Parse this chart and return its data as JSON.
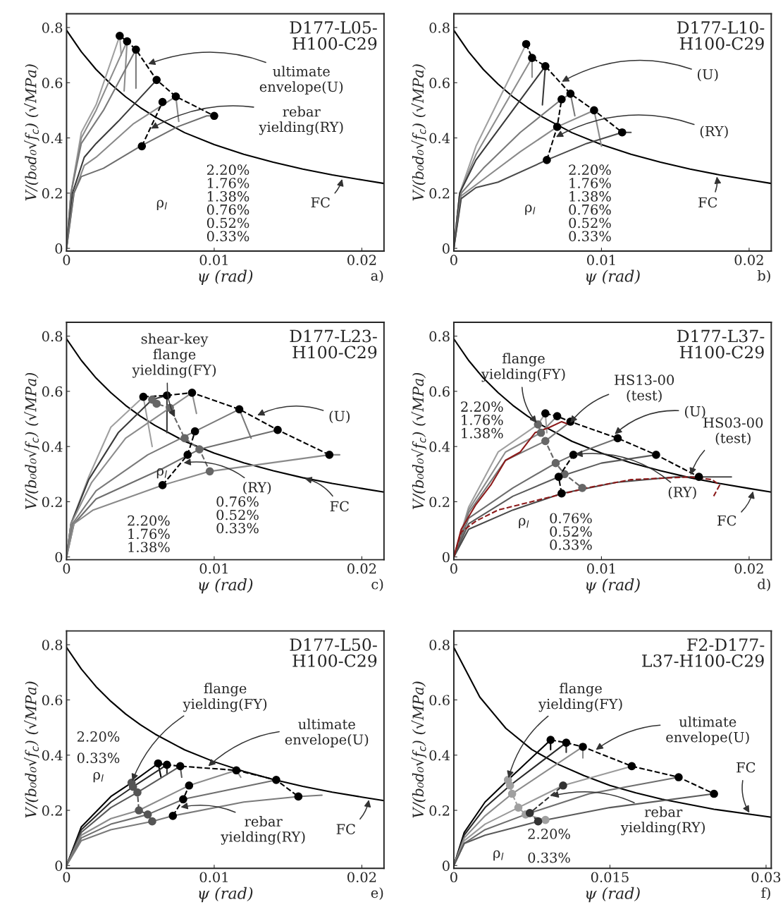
{
  "chart_data": [
    {
      "type": "line",
      "xlabel": "ψ (rad)",
      "ylabel": "V/(b₀d₀√f$_{c}$) (√MPa)",
      "xlim": [
        0,
        0.0215
      ],
      "ylim": [
        -0.01,
        0.85
      ],
      "xticks": [
        0,
        0.01,
        0.02
      ],
      "yticks": [
        0,
        0.2,
        0.4,
        0.6,
        0.8
      ],
      "annotations": [
        "D177-L05-\nH100-C29",
        {
          "text": "ultimate\nenvelope(U)",
          "x": 0.0054,
          "y": 0.665
        },
        {
          "text": "rebar\nyielding(RY)",
          "x": 0.0056,
          "y": 0.43
        },
        "2.20%\n1.76%\n1.38%\n0.76%\n0.52%\n0.33%",
        "ρ$_{l}$",
        {
          "text": "FC",
          "x": 0.0187,
          "y": 0.258
        },
        "a)"
      ],
      "series": [
        {
          "color": "#000000",
          "x": [
            0,
            0.001,
            0.002,
            0.003,
            0.004,
            0.005,
            0.006,
            0.008,
            0.01,
            0.012,
            0.014,
            0.016,
            0.018,
            0.02,
            0.0215
          ],
          "values": [
            0.79,
            0.712,
            0.648,
            0.595,
            0.549,
            0.51,
            0.476,
            0.419,
            0.376,
            0.341,
            0.312,
            0.287,
            0.266,
            0.248,
            0.235
          ]
        },
        {
          "color": "#a0a0a0",
          "x": [
            0,
            0.0003,
            0.001,
            0.002,
            0.0036,
            0.0037
          ],
          "values": [
            0,
            0.2,
            0.42,
            0.52,
            0.77,
            0.7
          ]
        },
        {
          "color": "#8c8c8c",
          "x": [
            0,
            0.0003,
            0.001,
            0.002,
            0.0041,
            0.0039
          ],
          "values": [
            0,
            0.2,
            0.4,
            0.5,
            0.75,
            0.57
          ]
        },
        {
          "color": "#7a7a7a",
          "x": [
            0,
            0.0003,
            0.001,
            0.0025,
            0.0047,
            0.0047
          ],
          "values": [
            0,
            0.2,
            0.38,
            0.5,
            0.72,
            0.58
          ]
        },
        {
          "color": "#3a3a3a",
          "x": [
            0,
            0.0004,
            0.0012,
            0.002,
            0.0035,
            0.0061
          ],
          "values": [
            0,
            0.2,
            0.33,
            0.38,
            0.46,
            0.61
          ]
        },
        {
          "color": "#8a8a8a",
          "x": [
            0,
            0.0005,
            0.0012,
            0.002,
            0.0045,
            0.0074,
            0.0076
          ],
          "values": [
            0,
            0.2,
            0.3,
            0.33,
            0.45,
            0.55,
            0.46
          ]
        },
        {
          "color": "#6e6e6e",
          "x": [
            0,
            0.0005,
            0.001,
            0.0025,
            0.005,
            0.0075,
            0.0095,
            0.01
          ],
          "values": [
            0,
            0.2,
            0.26,
            0.29,
            0.37,
            0.44,
            0.48,
            0.48
          ]
        },
        {
          "color": "#000000",
          "marker": "circle",
          "line_style": "dashed",
          "x": [
            0.0036,
            0.0041,
            0.0047,
            0.0061,
            0.0074,
            0.01
          ],
          "values": [
            0.77,
            0.75,
            0.72,
            0.61,
            0.55,
            0.48
          ]
        },
        {
          "color": "#000000",
          "marker": "circle",
          "line_style": "dashed",
          "x": [
            0.0051,
            0.0065
          ],
          "values": [
            0.37,
            0.53
          ]
        }
      ]
    },
    {
      "type": "line",
      "xlabel": "ψ (rad)",
      "ylabel": "V/(b₀d₀√f$_{c}$) (√MPa)",
      "xlim": [
        0,
        0.0215
      ],
      "ylim": [
        -0.01,
        0.85
      ],
      "xticks": [
        0,
        0.01,
        0.02
      ],
      "yticks": [
        0,
        0.2,
        0.4,
        0.6,
        0.8
      ],
      "annotations": [
        "D177-L10-\nH100-C29",
        {
          "text": "(U)",
          "x": 0.0072,
          "y": 0.6
        },
        {
          "text": "(RY)",
          "x": 0.0068,
          "y": 0.4
        },
        "2.20%\n1.76%\n1.38%\n0.76%\n0.52%\n0.33%",
        "ρ$_{l}$",
        {
          "text": "FC",
          "x": 0.0178,
          "y": 0.267
        },
        "b)"
      ],
      "series": [
        {
          "color": "#000000",
          "x": [
            0,
            0.001,
            0.002,
            0.003,
            0.004,
            0.005,
            0.006,
            0.008,
            0.01,
            0.012,
            0.014,
            0.016,
            0.018,
            0.02,
            0.0215
          ],
          "values": [
            0.79,
            0.712,
            0.648,
            0.595,
            0.549,
            0.51,
            0.476,
            0.419,
            0.376,
            0.341,
            0.312,
            0.287,
            0.266,
            0.248,
            0.235
          ]
        },
        {
          "color": "#a0a0a0",
          "x": [
            0,
            0.0004,
            0.0015,
            0.0049
          ],
          "values": [
            0,
            0.2,
            0.37,
            0.74
          ]
        },
        {
          "color": "#8c8c8c",
          "x": [
            0,
            0.0004,
            0.0015,
            0.0053,
            0.0053
          ],
          "values": [
            0,
            0.2,
            0.34,
            0.69,
            0.62
          ]
        },
        {
          "color": "#3a3a3a",
          "x": [
            0,
            0.0004,
            0.0015,
            0.0062,
            0.006
          ],
          "values": [
            0,
            0.2,
            0.32,
            0.66,
            0.52
          ]
        },
        {
          "color": "#7a7a7a",
          "x": [
            0,
            0.0005,
            0.002,
            0.0045,
            0.0073,
            0.0079,
            0.0082
          ],
          "values": [
            0,
            0.2,
            0.29,
            0.42,
            0.54,
            0.56,
            0.48
          ]
        },
        {
          "color": "#8a8a8a",
          "x": [
            0,
            0.0005,
            0.002,
            0.0045,
            0.007,
            0.0095,
            0.01
          ],
          "values": [
            0,
            0.19,
            0.25,
            0.35,
            0.44,
            0.5,
            0.37
          ]
        },
        {
          "color": "#4a4a4a",
          "x": [
            0,
            0.0005,
            0.0015,
            0.003,
            0.0063,
            0.009,
            0.0114,
            0.012
          ],
          "values": [
            0,
            0.18,
            0.22,
            0.24,
            0.32,
            0.38,
            0.42,
            0.42
          ]
        },
        {
          "color": "#000000",
          "marker": "circle",
          "line_style": "dashed",
          "x": [
            0.0049,
            0.0053,
            0.0062,
            0.0079,
            0.0095,
            0.0114
          ],
          "values": [
            0.74,
            0.69,
            0.66,
            0.56,
            0.5,
            0.42
          ]
        },
        {
          "color": "#000000",
          "marker": "circle",
          "line_style": "dashed",
          "x": [
            0.0063,
            0.007,
            0.0073
          ],
          "values": [
            0.32,
            0.44,
            0.54
          ]
        }
      ]
    },
    {
      "type": "line",
      "xlabel": "ψ (rad)",
      "ylabel": "V/(b₀d₀√f$_{c}$) (√MPa)",
      "xlim": [
        0,
        0.0215
      ],
      "ylim": [
        -0.01,
        0.85
      ],
      "xticks": [
        0,
        0.01,
        0.02
      ],
      "yticks": [
        0,
        0.2,
        0.4,
        0.6,
        0.8
      ],
      "annotations": [
        "D177-L23-\nH100-C29",
        {
          "text": "shear-key\nflange\nyielding(FY)",
          "x": 0.0074,
          "y": 0.5
        },
        {
          "text": "(U)",
          "x": 0.0128,
          "y": 0.51
        },
        {
          "text": "(RY)",
          "x": 0.0078,
          "y": 0.34
        },
        "2.20%\n1.76%\n1.38%",
        "0.76%\n0.52%\n0.33%",
        "ρ$_{l}$",
        {
          "text": "FC",
          "x": 0.016,
          "y": 0.286
        },
        "c)"
      ],
      "series": [
        {
          "color": "#000000",
          "x": [
            0,
            0.001,
            0.002,
            0.003,
            0.004,
            0.005,
            0.006,
            0.008,
            0.01,
            0.012,
            0.014,
            0.016,
            0.018,
            0.02,
            0.0215
          ],
          "values": [
            0.79,
            0.712,
            0.648,
            0.595,
            0.549,
            0.51,
            0.476,
            0.419,
            0.376,
            0.341,
            0.312,
            0.287,
            0.266,
            0.248,
            0.235
          ]
        },
        {
          "color": "#a0a0a0",
          "x": [
            0,
            0.0003,
            0.0015,
            0.003,
            0.0052,
            0.0058
          ],
          "values": [
            0,
            0.12,
            0.29,
            0.47,
            0.58,
            0.4
          ]
        },
        {
          "color": "#3a3a3a",
          "x": [
            0,
            0.0003,
            0.0015,
            0.0035,
            0.0058,
            0.0068,
            0.0068
          ],
          "values": [
            0,
            0.12,
            0.28,
            0.45,
            0.57,
            0.585,
            0.45
          ]
        },
        {
          "color": "#8c8c8c",
          "x": [
            0,
            0.0003,
            0.0017,
            0.004,
            0.007,
            0.0085,
            0.0088
          ],
          "values": [
            0,
            0.12,
            0.27,
            0.43,
            0.54,
            0.595,
            0.52
          ]
        },
        {
          "color": "#7a7a7a",
          "x": [
            0,
            0.0004,
            0.002,
            0.0055,
            0.0087,
            0.0117,
            0.0125
          ],
          "values": [
            0,
            0.12,
            0.24,
            0.37,
            0.455,
            0.535,
            0.43
          ]
        },
        {
          "color": "#6e6e6e",
          "x": [
            0,
            0.0005,
            0.002,
            0.0065,
            0.009,
            0.0143
          ],
          "values": [
            0,
            0.12,
            0.21,
            0.32,
            0.39,
            0.46
          ]
        },
        {
          "color": "#8a8a8a",
          "x": [
            0,
            0.0005,
            0.0018,
            0.0065,
            0.0097,
            0.0178,
            0.0185
          ],
          "values": [
            0,
            0.12,
            0.17,
            0.26,
            0.31,
            0.37,
            0.37
          ]
        },
        {
          "color": "#000000",
          "marker": "circle",
          "line_style": "dashed",
          "x": [
            0.0052,
            0.0068,
            0.0085,
            0.0117,
            0.0143,
            0.0178
          ],
          "values": [
            0.58,
            0.585,
            0.595,
            0.535,
            0.46,
            0.37
          ]
        },
        {
          "color": "#666666",
          "marker": "circle",
          "line_style": "dashed",
          "x": [
            0.0058,
            0.0061,
            0.007,
            0.008,
            0.009,
            0.0097
          ],
          "values": [
            0.57,
            0.555,
            0.54,
            0.43,
            0.39,
            0.31
          ]
        },
        {
          "color": "#000000",
          "marker": "circle",
          "line_style": "dashed",
          "x": [
            0.0065,
            0.0082,
            0.0087
          ],
          "values": [
            0.26,
            0.37,
            0.455
          ]
        }
      ]
    },
    {
      "type": "line",
      "xlabel": "ψ (rad)",
      "ylabel": "V/(b₀d₀√f$_{c}$) (√MPa)",
      "xlim": [
        0,
        0.0215
      ],
      "ylim": [
        -0.01,
        0.85
      ],
      "xticks": [
        0,
        0.01,
        0.02
      ],
      "yticks": [
        0,
        0.2,
        0.4,
        0.6,
        0.8
      ],
      "annotations": [
        "D177-L37-\nH100-C29",
        {
          "text": "flange\nyielding(FY)",
          "x": 0.0057,
          "y": 0.48
        },
        {
          "text": "HS13-00\n(test)",
          "x": 0.0078,
          "y": 0.48
        },
        {
          "text": "(U)",
          "x": 0.0108,
          "y": 0.44
        },
        {
          "text": "HS03-00\n(test)",
          "x": 0.016,
          "y": 0.29
        },
        {
          "text": "(RY)",
          "x": 0.0081,
          "y": 0.37
        },
        "2.20%\n1.76%\n1.38%",
        "0.76%\n0.52%\n0.33%",
        "ρ$_{l}$",
        {
          "text": "FC",
          "x": 0.0203,
          "y": 0.245
        },
        "d)"
      ],
      "series": [
        {
          "color": "#000000",
          "x": [
            0,
            0.001,
            0.002,
            0.003,
            0.004,
            0.005,
            0.006,
            0.008,
            0.01,
            0.012,
            0.014,
            0.016,
            0.018,
            0.02,
            0.0215
          ],
          "values": [
            0.79,
            0.712,
            0.648,
            0.595,
            0.549,
            0.51,
            0.476,
            0.419,
            0.376,
            0.341,
            0.312,
            0.287,
            0.266,
            0.248,
            0.235
          ]
        },
        {
          "color": "#a0a0a0",
          "x": [
            0,
            0.001,
            0.003,
            0.0057,
            0.0062,
            0.0063
          ],
          "values": [
            0,
            0.18,
            0.38,
            0.48,
            0.52,
            0.45
          ]
        },
        {
          "color": "#8c8c8c",
          "x": [
            0,
            0.001,
            0.0035,
            0.0059,
            0.007
          ],
          "values": [
            0,
            0.17,
            0.38,
            0.45,
            0.51
          ]
        },
        {
          "color": "#7a7a7a",
          "x": [
            0,
            0.001,
            0.0035,
            0.0062,
            0.0079
          ],
          "values": [
            0,
            0.16,
            0.35,
            0.42,
            0.49
          ]
        },
        {
          "color": "#6e6e6e",
          "x": [
            0,
            0.001,
            0.004,
            0.0069,
            0.0081,
            0.0111
          ],
          "values": [
            0,
            0.14,
            0.25,
            0.34,
            0.37,
            0.43
          ]
        },
        {
          "color": "#5a5a5a",
          "x": [
            0,
            0.001,
            0.004,
            0.0071,
            0.01,
            0.0137
          ],
          "values": [
            0,
            0.12,
            0.22,
            0.29,
            0.34,
            0.37
          ]
        },
        {
          "color": "#4a4a4a",
          "x": [
            0,
            0.001,
            0.004,
            0.0073,
            0.011,
            0.015,
            0.0166,
            0.0188
          ],
          "values": [
            0,
            0.1,
            0.17,
            0.23,
            0.27,
            0.29,
            0.29,
            0.29
          ]
        },
        {
          "color": "#8b1a1a",
          "x": [
            0,
            0.0005,
            0.0015,
            0.0025,
            0.0035,
            0.0045,
            0.0055,
            0.0065,
            0.0073,
            0.0078
          ],
          "values": [
            0,
            0.1,
            0.19,
            0.26,
            0.35,
            0.38,
            0.45,
            0.47,
            0.49,
            0.48
          ]
        },
        {
          "color": "#8b1a1a",
          "line_style": "dashed",
          "x": [
            0,
            0.0005,
            0.0015,
            0.003,
            0.006,
            0.009,
            0.012,
            0.016,
            0.0175,
            0.018,
            0.0176
          ],
          "values": [
            0,
            0.09,
            0.13,
            0.17,
            0.21,
            0.25,
            0.28,
            0.29,
            0.28,
            0.26,
            0.22
          ]
        },
        {
          "color": "#000000",
          "marker": "circle",
          "line_style": "dashed",
          "x": [
            0.0062,
            0.007,
            0.0079,
            0.0111,
            0.0137,
            0.0166
          ],
          "values": [
            0.52,
            0.51,
            0.49,
            0.43,
            0.37,
            0.29
          ]
        },
        {
          "color": "#666666",
          "marker": "circle",
          "line_style": "dashed",
          "x": [
            0.0057,
            0.0059,
            0.0062,
            0.0069,
            0.0075,
            0.0087
          ],
          "values": [
            0.48,
            0.45,
            0.42,
            0.34,
            0.3,
            0.25
          ]
        },
        {
          "color": "#000000",
          "marker": "circle",
          "line_style": "dashed",
          "x": [
            0.0073,
            0.0071,
            0.0081
          ],
          "values": [
            0.23,
            0.29,
            0.37
          ]
        }
      ]
    },
    {
      "type": "line",
      "xlabel": "ψ (rad)",
      "ylabel": "V/(b₀d₀√f$_{c}$) (√MPa)",
      "xlim": [
        0,
        0.0215
      ],
      "ylim": [
        -0.01,
        0.85
      ],
      "xticks": [
        0,
        0.01,
        0.02
      ],
      "yticks": [
        0,
        0.2,
        0.4,
        0.6,
        0.8
      ],
      "annotations": [
        "D177-L50-\nH100-C29",
        {
          "text": "flange\nyielding(FY)",
          "x": 0.0044,
          "y": 0.3
        },
        {
          "text": "ultimate\nenvelope(U)",
          "x": 0.0095,
          "y": 0.355
        },
        {
          "text": "rebar\nyielding(RY)",
          "x": 0.0076,
          "y": 0.21
        },
        "2.20%",
        "0.33%",
        "ρ$_{l}$",
        {
          "text": "FC",
          "x": 0.0205,
          "y": 0.245
        },
        "e)"
      ],
      "series": [
        {
          "color": "#000000",
          "x": [
            0,
            0.001,
            0.002,
            0.003,
            0.004,
            0.005,
            0.006,
            0.008,
            0.01,
            0.012,
            0.014,
            0.016,
            0.018,
            0.02,
            0.0215
          ],
          "values": [
            0.79,
            0.712,
            0.648,
            0.595,
            0.549,
            0.51,
            0.476,
            0.419,
            0.376,
            0.341,
            0.312,
            0.287,
            0.266,
            0.248,
            0.235
          ]
        },
        {
          "color": "#000000",
          "x": [
            0,
            0.001,
            0.003,
            0.0044,
            0.0062,
            0.0064
          ],
          "values": [
            0,
            0.14,
            0.25,
            0.3,
            0.37,
            0.32
          ]
        },
        {
          "color": "#2a2a2a",
          "x": [
            0,
            0.001,
            0.003,
            0.0045,
            0.0068,
            0.0068
          ],
          "values": [
            0,
            0.13,
            0.23,
            0.285,
            0.365,
            0.33
          ]
        },
        {
          "color": "#5a5a5a",
          "x": [
            0,
            0.001,
            0.003,
            0.0048,
            0.0077,
            0.0078
          ],
          "values": [
            0,
            0.12,
            0.21,
            0.265,
            0.36,
            0.32
          ]
        },
        {
          "color": "#8c8c8c",
          "x": [
            0,
            0.001,
            0.003,
            0.0049,
            0.0083,
            0.0115,
            0.0118
          ],
          "values": [
            0,
            0.11,
            0.17,
            0.2,
            0.29,
            0.345,
            0.32
          ]
        },
        {
          "color": "#6e6e6e",
          "x": [
            0,
            0.001,
            0.003,
            0.0055,
            0.0079,
            0.0142
          ],
          "values": [
            0,
            0.1,
            0.15,
            0.185,
            0.24,
            0.31
          ]
        },
        {
          "color": "#7a7a7a",
          "x": [
            0,
            0.001,
            0.003,
            0.0058,
            0.0072,
            0.012,
            0.0157,
            0.0173
          ],
          "values": [
            0,
            0.09,
            0.13,
            0.16,
            0.18,
            0.23,
            0.25,
            0.255
          ]
        },
        {
          "color": "#000000",
          "marker": "circle",
          "line_style": "dashed",
          "x": [
            0.0062,
            0.0068,
            0.0077,
            0.0115,
            0.0142,
            0.0157
          ],
          "values": [
            0.37,
            0.365,
            0.36,
            0.345,
            0.31,
            0.25
          ]
        },
        {
          "color": "#555555",
          "marker": "circle",
          "line_style": "dashed",
          "x": [
            0.0044,
            0.0045,
            0.0048,
            0.0049,
            0.0055,
            0.0058
          ],
          "values": [
            0.3,
            0.285,
            0.265,
            0.2,
            0.185,
            0.16
          ]
        },
        {
          "color": "#000000",
          "marker": "circle",
          "line_style": "dashed",
          "x": [
            0.0072,
            0.0079,
            0.0083
          ],
          "values": [
            0.18,
            0.24,
            0.29
          ]
        }
      ]
    },
    {
      "type": "line",
      "xlabel": "ψ (rad)",
      "ylabel": "V/(b₀d₀√f$_{c}$) (√MPa)",
      "xlim": [
        0,
        0.0305
      ],
      "ylim": [
        -0.01,
        0.85
      ],
      "xticks": [
        0,
        0.015,
        0.03
      ],
      "yticks": [
        0,
        0.2,
        0.4,
        0.6,
        0.8
      ],
      "annotations": [
        "F2-D177-\nL37-H100-C29",
        {
          "text": "flange\nyielding(FY)",
          "x": 0.0052,
          "y": 0.31
        },
        {
          "text": "ultimate\nenvelope(U)",
          "x": 0.0135,
          "y": 0.415
        },
        {
          "text": "rebar\nyielding(RY)",
          "x": 0.0092,
          "y": 0.25
        },
        "2.20%",
        "0.33%",
        "ρ$_{l}$",
        {
          "text": "FC",
          "x": 0.0285,
          "y": 0.185
        },
        "f)"
      ],
      "series": [
        {
          "color": "#000000",
          "x": [
            0,
            0.0025,
            0.005,
            0.0075,
            0.01,
            0.0125,
            0.015,
            0.0175,
            0.02,
            0.025,
            0.0305
          ],
          "values": [
            0.79,
            0.61,
            0.497,
            0.42,
            0.367,
            0.326,
            0.29,
            0.263,
            0.24,
            0.204,
            0.175
          ]
        },
        {
          "color": "#000000",
          "x": [
            0,
            0.001,
            0.003,
            0.0052,
            0.0093,
            0.0093
          ],
          "values": [
            0,
            0.12,
            0.23,
            0.31,
            0.455,
            0.42
          ]
        },
        {
          "color": "#2a2a2a",
          "x": [
            0,
            0.001,
            0.003,
            0.0054,
            0.0108,
            0.0108
          ],
          "values": [
            0,
            0.11,
            0.21,
            0.29,
            0.445,
            0.41
          ]
        },
        {
          "color": "#8c8c8c",
          "x": [
            0,
            0.001,
            0.003,
            0.0056,
            0.0124,
            0.0124
          ],
          "values": [
            0,
            0.1,
            0.18,
            0.26,
            0.43,
            0.39
          ]
        },
        {
          "color": "#9a9a9a",
          "x": [
            0,
            0.001,
            0.003,
            0.0062,
            0.0105,
            0.0171
          ],
          "values": [
            0,
            0.09,
            0.15,
            0.21,
            0.29,
            0.36
          ]
        },
        {
          "color": "#6e6e6e",
          "x": [
            0,
            0.001,
            0.003,
            0.0069,
            0.013,
            0.0216
          ],
          "values": [
            0,
            0.08,
            0.13,
            0.185,
            0.26,
            0.32
          ]
        },
        {
          "color": "#5a5a5a",
          "x": [
            0,
            0.001,
            0.003,
            0.0081,
            0.015,
            0.025
          ],
          "values": [
            0,
            0.08,
            0.11,
            0.16,
            0.21,
            0.26
          ]
        },
        {
          "color": "#000000",
          "marker": "circle",
          "line_style": "dashed",
          "x": [
            0.0093,
            0.0108,
            0.0124,
            0.0171,
            0.0216,
            0.025
          ],
          "values": [
            0.455,
            0.445,
            0.43,
            0.36,
            0.32,
            0.26
          ]
        },
        {
          "color": "#a0a0a0",
          "marker": "circle",
          "line_style": "dashed",
          "x": [
            0.0052,
            0.0054,
            0.0056,
            0.0062,
            0.0069,
            0.0088
          ],
          "values": [
            0.31,
            0.29,
            0.26,
            0.21,
            0.185,
            0.165
          ]
        },
        {
          "color": "#333333",
          "marker": "circle",
          "line_style": "dashed",
          "x": [
            0.0081,
            0.0073,
            0.0105
          ],
          "values": [
            0.16,
            0.19,
            0.29
          ]
        }
      ]
    }
  ]
}
